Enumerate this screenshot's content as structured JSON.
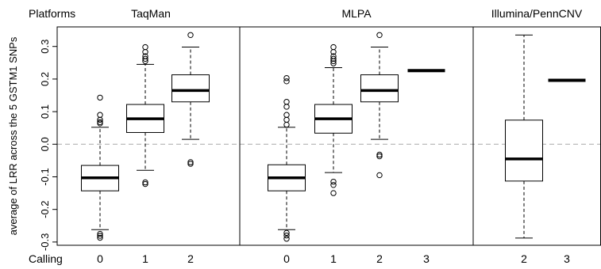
{
  "chart_data": {
    "type": "box",
    "ylabel": "average of LRR across the 5 GSTM1 SNPs",
    "ylim": [
      -0.31,
      0.36
    ],
    "yticks": [
      -0.3,
      -0.2,
      -0.1,
      0.0,
      0.1,
      0.2,
      0.3
    ],
    "ytick_labels": [
      "-0.3",
      "-0.2",
      "-0.1",
      "0.0",
      "0.1",
      "0.2",
      "0.3"
    ],
    "reference_line": 0.0,
    "reference_line_style": "dashed grey",
    "row_labels": {
      "platforms": "Platforms",
      "calling": "Calling"
    },
    "panels": [
      {
        "name": "TaqMan",
        "boxes": [
          {
            "calling": "0",
            "q1": -0.143,
            "median": -0.103,
            "q3": -0.065,
            "whisker_low": -0.262,
            "whisker_high": 0.052,
            "outliers": [
              0.143,
              0.09,
              0.075,
              0.068,
              0.064,
              -0.275,
              -0.281,
              -0.287
            ]
          },
          {
            "calling": "1",
            "q1": 0.036,
            "median": 0.078,
            "q3": 0.122,
            "whisker_low": -0.08,
            "whisker_high": 0.245,
            "outliers": [
              0.298,
              0.283,
              0.27,
              0.262,
              0.255,
              -0.117,
              -0.122
            ]
          },
          {
            "calling": "2",
            "q1": 0.13,
            "median": 0.165,
            "q3": 0.213,
            "whisker_low": 0.015,
            "whisker_high": 0.298,
            "outliers": [
              0.335,
              -0.055,
              -0.06
            ]
          }
        ]
      },
      {
        "name": "MLPA",
        "boxes": [
          {
            "calling": "0",
            "q1": -0.143,
            "median": -0.103,
            "q3": -0.063,
            "whisker_low": -0.262,
            "whisker_high": 0.052,
            "outliers": [
              0.203,
              0.193,
              0.13,
              0.115,
              0.09,
              0.075,
              0.06,
              -0.272,
              -0.28,
              -0.29
            ]
          },
          {
            "calling": "1",
            "q1": 0.034,
            "median": 0.078,
            "q3": 0.122,
            "whisker_low": -0.087,
            "whisker_high": 0.235,
            "outliers": [
              0.298,
              0.283,
              0.27,
              0.262,
              0.255,
              0.248,
              -0.115,
              -0.125,
              -0.15
            ]
          },
          {
            "calling": "2",
            "q1": 0.13,
            "median": 0.165,
            "q3": 0.213,
            "whisker_low": 0.015,
            "whisker_high": 0.298,
            "outliers": [
              0.335,
              -0.032,
              -0.037,
              -0.095
            ]
          },
          {
            "calling": "3",
            "single_value": 0.226
          }
        ]
      },
      {
        "name": "Illumina/PennCNV",
        "boxes": [
          {
            "calling": "2",
            "q1": -0.113,
            "median": -0.045,
            "q3": 0.074,
            "whisker_low": -0.288,
            "whisker_high": 0.335,
            "outliers": []
          },
          {
            "calling": "3",
            "single_value": 0.196
          }
        ]
      }
    ]
  }
}
